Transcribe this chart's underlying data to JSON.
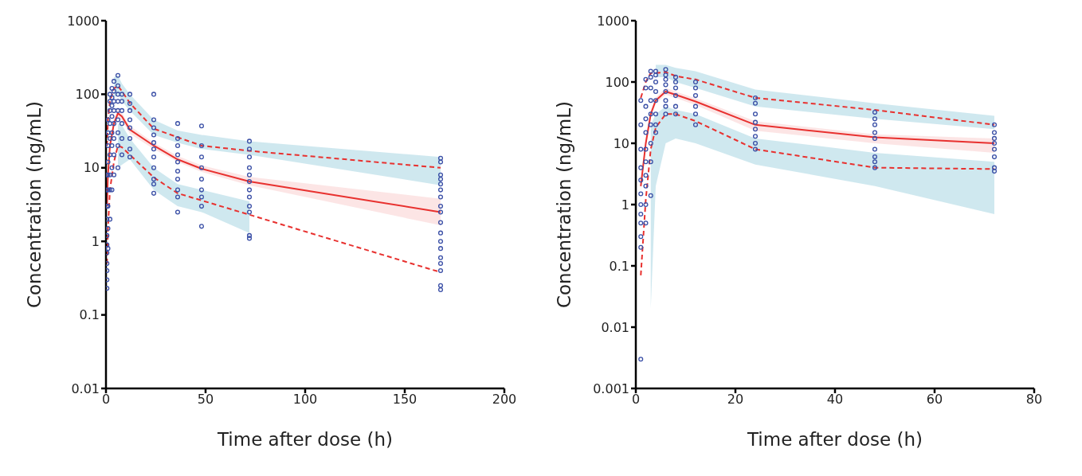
{
  "chart_data": [
    {
      "type": "line",
      "xlabel": "Time after dose (h)",
      "ylabel": "Concentration (ng/mL)",
      "xlim": [
        0,
        200
      ],
      "xticks": [
        0,
        50,
        100,
        150,
        200
      ],
      "ylim": [
        0.01,
        1000
      ],
      "yticks": [
        0.01,
        0.1,
        1,
        10,
        100,
        1000
      ],
      "log": "y",
      "series": [
        {
          "color": "#e8312f",
          "line_style": "dashed",
          "marker": "none",
          "x": [
            0.5,
            1,
            2,
            4,
            6,
            8,
            12,
            24,
            36,
            48,
            72,
            168
          ],
          "values": [
            0.5,
            1.5,
            5,
            12,
            20,
            19,
            15,
            7.4,
            4.5,
            3.6,
            2.3,
            0.38
          ],
          "lower": [
            null,
            null,
            null,
            null,
            10,
            11,
            13,
            5,
            3,
            2.5,
            1.3,
            null
          ],
          "upper": [
            null,
            null,
            null,
            null,
            40,
            38,
            25,
            10,
            6,
            5,
            3.5,
            null
          ]
        },
        {
          "color": "#e8312f",
          "line_style": "dashed",
          "marker": "none",
          "x": [
            0.5,
            1,
            2,
            4,
            6,
            8,
            12,
            24,
            36,
            48,
            72,
            168
          ],
          "values": [
            20,
            45,
            80,
            120,
            130,
            110,
            76,
            34,
            26,
            20,
            17,
            10
          ],
          "lower": [
            null,
            null,
            null,
            90,
            100,
            80,
            60,
            28,
            22,
            18,
            15,
            5.8
          ],
          "upper": [
            null,
            null,
            null,
            170,
            180,
            140,
            100,
            45,
            32,
            28,
            23,
            14
          ]
        },
        {
          "color": "#e8312f",
          "line_style": "solid",
          "marker": "none",
          "x": [
            0.5,
            1,
            2,
            4,
            6,
            8,
            12,
            24,
            36,
            48,
            72,
            168
          ],
          "values": [
            3,
            8,
            20,
            40,
            55,
            50,
            33,
            20,
            13,
            9.7,
            6.5,
            2.5
          ],
          "lower": [
            2.5,
            7,
            17,
            35,
            48,
            44,
            29,
            18,
            12,
            8.8,
            5.8,
            1.65
          ],
          "upper": [
            3.5,
            9,
            23,
            46,
            62,
            56,
            37,
            22,
            14.5,
            10.8,
            7.5,
            3.8
          ]
        },
        {
          "type": "scatter",
          "color": "#3a4fa6",
          "marker": "circle",
          "x": [
            0.5,
            0.5,
            0.5,
            0.5,
            0.5,
            0.5,
            0.5,
            0.5,
            0.5,
            0.5,
            0.5,
            1,
            1,
            1,
            1,
            1,
            1,
            1,
            1,
            1,
            2,
            2,
            2,
            2,
            2,
            2,
            2,
            2,
            2,
            3,
            3,
            3,
            3,
            3,
            3,
            3,
            3,
            4,
            4,
            4,
            4,
            4,
            4,
            4,
            4,
            6,
            6,
            6,
            6,
            6,
            6,
            6,
            6,
            6,
            8,
            8,
            8,
            8,
            8,
            8,
            12,
            12,
            12,
            12,
            12,
            12,
            12,
            12,
            24,
            24,
            24,
            24,
            24,
            24,
            24,
            24,
            24,
            24,
            24,
            36,
            36,
            36,
            36,
            36,
            36,
            36,
            36,
            36,
            36,
            48,
            48,
            48,
            48,
            48,
            48,
            48,
            48,
            48,
            72,
            72,
            72,
            72,
            72,
            72,
            72,
            72,
            72,
            72,
            72,
            72,
            168,
            168,
            168,
            168,
            168,
            168,
            168,
            168,
            168,
            168,
            168,
            168,
            168,
            168,
            168,
            168,
            168,
            168
          ],
          "values": [
            0.23,
            0.3,
            0.4,
            0.5,
            0.7,
            0.9,
            1.2,
            2,
            3,
            5,
            8,
            0.8,
            1.5,
            3,
            5,
            8,
            12,
            20,
            30,
            45,
            2,
            5,
            8,
            15,
            25,
            40,
            60,
            80,
            100,
            5,
            10,
            20,
            30,
            50,
            70,
            90,
            120,
            8,
            15,
            25,
            40,
            60,
            80,
            110,
            150,
            10,
            20,
            30,
            45,
            60,
            80,
            100,
            130,
            180,
            15,
            25,
            40,
            60,
            80,
            100,
            14,
            18,
            25,
            35,
            45,
            60,
            75,
            100,
            4.5,
            6,
            7,
            10,
            14,
            18,
            22,
            28,
            35,
            45,
            100,
            2.5,
            4,
            5,
            7,
            9,
            12,
            15,
            20,
            25,
            40,
            1.6,
            3,
            4,
            5,
            7,
            10,
            14,
            20,
            37,
            1.1,
            1.2,
            2.5,
            3,
            4,
            5,
            6.5,
            8,
            10,
            14,
            18,
            23,
            0.22,
            0.25,
            0.4,
            0.5,
            0.6,
            0.8,
            1,
            1.3,
            1.8,
            2.5,
            3,
            4,
            5,
            6,
            7,
            8,
            12,
            13.5
          ]
        }
      ]
    },
    {
      "type": "line",
      "xlabel": "Time after dose (h)",
      "ylabel": "Concentration (ng/mL)",
      "xlim": [
        0,
        80
      ],
      "xticks": [
        0,
        20,
        40,
        60,
        80
      ],
      "ylim": [
        0.001,
        1000
      ],
      "yticks": [
        0.001,
        0.01,
        0.1,
        1,
        10,
        100,
        1000
      ],
      "log": "y",
      "series": [
        {
          "color": "#e8312f",
          "line_style": "dashed",
          "marker": "none",
          "x": [
            1,
            2,
            3,
            4,
            6,
            8,
            12,
            24,
            48,
            72
          ],
          "values": [
            0.07,
            1.2,
            8,
            18,
            30,
            30,
            23,
            8,
            4,
            3.8
          ],
          "lower": [
            null,
            null,
            0.02,
            2,
            10,
            12,
            10,
            4.5,
            2,
            0.7
          ],
          "upper": [
            null,
            null,
            20,
            30,
            40,
            35,
            30,
            12,
            7,
            5
          ]
        },
        {
          "color": "#e8312f",
          "line_style": "dashed",
          "marker": "none",
          "x": [
            1,
            2,
            3,
            4,
            6,
            8,
            12,
            24,
            48,
            72
          ],
          "values": [
            55,
            100,
            140,
            140,
            145,
            125,
            110,
            55,
            35,
            20
          ],
          "lower": [
            null,
            null,
            null,
            120,
            120,
            100,
            80,
            40,
            25,
            17
          ],
          "upper": [
            null,
            null,
            null,
            190,
            190,
            170,
            150,
            75,
            45,
            28
          ]
        },
        {
          "color": "#e8312f",
          "line_style": "solid",
          "marker": "none",
          "x": [
            1,
            2,
            3,
            4,
            6,
            8,
            12,
            24,
            48,
            72
          ],
          "values": [
            2,
            10,
            30,
            50,
            70,
            62,
            48,
            20,
            12.5,
            10
          ],
          "lower": [
            1.6,
            8.5,
            26,
            44,
            62,
            55,
            42,
            16,
            10,
            7
          ],
          "upper": [
            2.4,
            12,
            34,
            56,
            80,
            70,
            54,
            23,
            14,
            12
          ]
        },
        {
          "type": "scatter",
          "color": "#3a4fa6",
          "marker": "circle",
          "x": [
            1,
            1,
            1,
            1,
            1,
            1,
            1,
            1,
            1,
            1,
            1,
            1,
            2,
            2,
            2,
            2,
            2,
            2,
            2,
            2,
            2,
            2,
            2,
            3,
            3,
            3,
            3,
            3,
            3,
            3,
            3,
            3,
            4,
            4,
            4,
            4,
            4,
            4,
            4,
            4,
            6,
            6,
            6,
            6,
            6,
            6,
            6,
            6,
            8,
            8,
            8,
            8,
            8,
            8,
            12,
            12,
            12,
            12,
            12,
            12,
            24,
            24,
            24,
            24,
            24,
            24,
            24,
            24,
            48,
            48,
            48,
            48,
            48,
            48,
            48,
            48,
            48,
            72,
            72,
            72,
            72,
            72,
            72,
            72,
            72
          ],
          "values": [
            0.003,
            0.2,
            0.3,
            0.5,
            0.7,
            1,
            1.5,
            2.5,
            4,
            8,
            20,
            50,
            0.5,
            1,
            2,
            3,
            5,
            8,
            15,
            25,
            40,
            80,
            110,
            1.4,
            5,
            10,
            20,
            30,
            50,
            80,
            120,
            150,
            15,
            20,
            30,
            50,
            70,
            100,
            130,
            150,
            30,
            40,
            50,
            70,
            90,
            110,
            130,
            160,
            30,
            40,
            60,
            80,
            100,
            120,
            20,
            30,
            40,
            60,
            80,
            100,
            8,
            10,
            13,
            17,
            22,
            30,
            45,
            55,
            4,
            5,
            6,
            8,
            12,
            15,
            20,
            25,
            32,
            3.5,
            4,
            6,
            8,
            10,
            12,
            15,
            20
          ]
        }
      ]
    }
  ]
}
